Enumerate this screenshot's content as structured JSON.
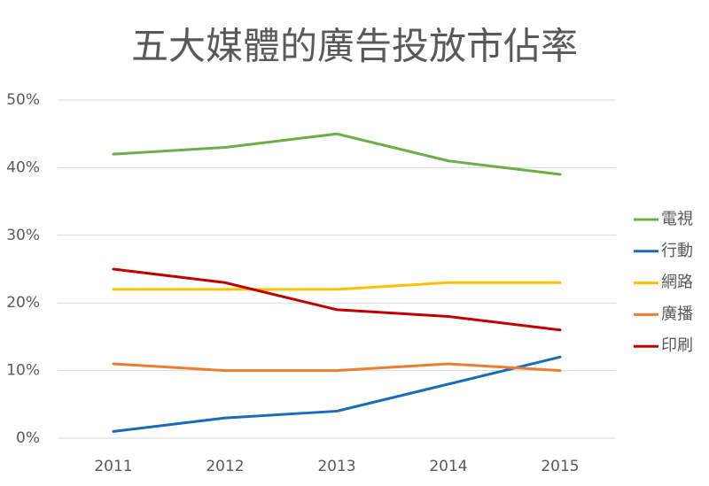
{
  "chart_data": {
    "type": "line",
    "title": "五大媒體的廣告投放市佔率",
    "categories": [
      "2011",
      "2012",
      "2013",
      "2014",
      "2015"
    ],
    "series": [
      {
        "name": "電視",
        "color": "#70ad47",
        "values": [
          42,
          43,
          45,
          41,
          39
        ]
      },
      {
        "name": "行動",
        "color": "#1a6cbb",
        "values": [
          1,
          3,
          4,
          8,
          12
        ]
      },
      {
        "name": "網路",
        "color": "#ffc000",
        "values": [
          22,
          22,
          22,
          23,
          23
        ]
      },
      {
        "name": "廣播",
        "color": "#ed7d31",
        "values": [
          11,
          10,
          10,
          11,
          10
        ]
      },
      {
        "name": "印刷",
        "color": "#c00000",
        "values": [
          25,
          23,
          19,
          18,
          16
        ]
      }
    ],
    "ylim": [
      0,
      50
    ],
    "yticks": [
      {
        "value": 0,
        "label": "0%"
      },
      {
        "value": 10,
        "label": "10%"
      },
      {
        "value": 20,
        "label": "20%"
      },
      {
        "value": 30,
        "label": "30%"
      },
      {
        "value": 40,
        "label": "40%"
      },
      {
        "value": 50,
        "label": "50%"
      }
    ],
    "grid": true,
    "legend": "right"
  }
}
